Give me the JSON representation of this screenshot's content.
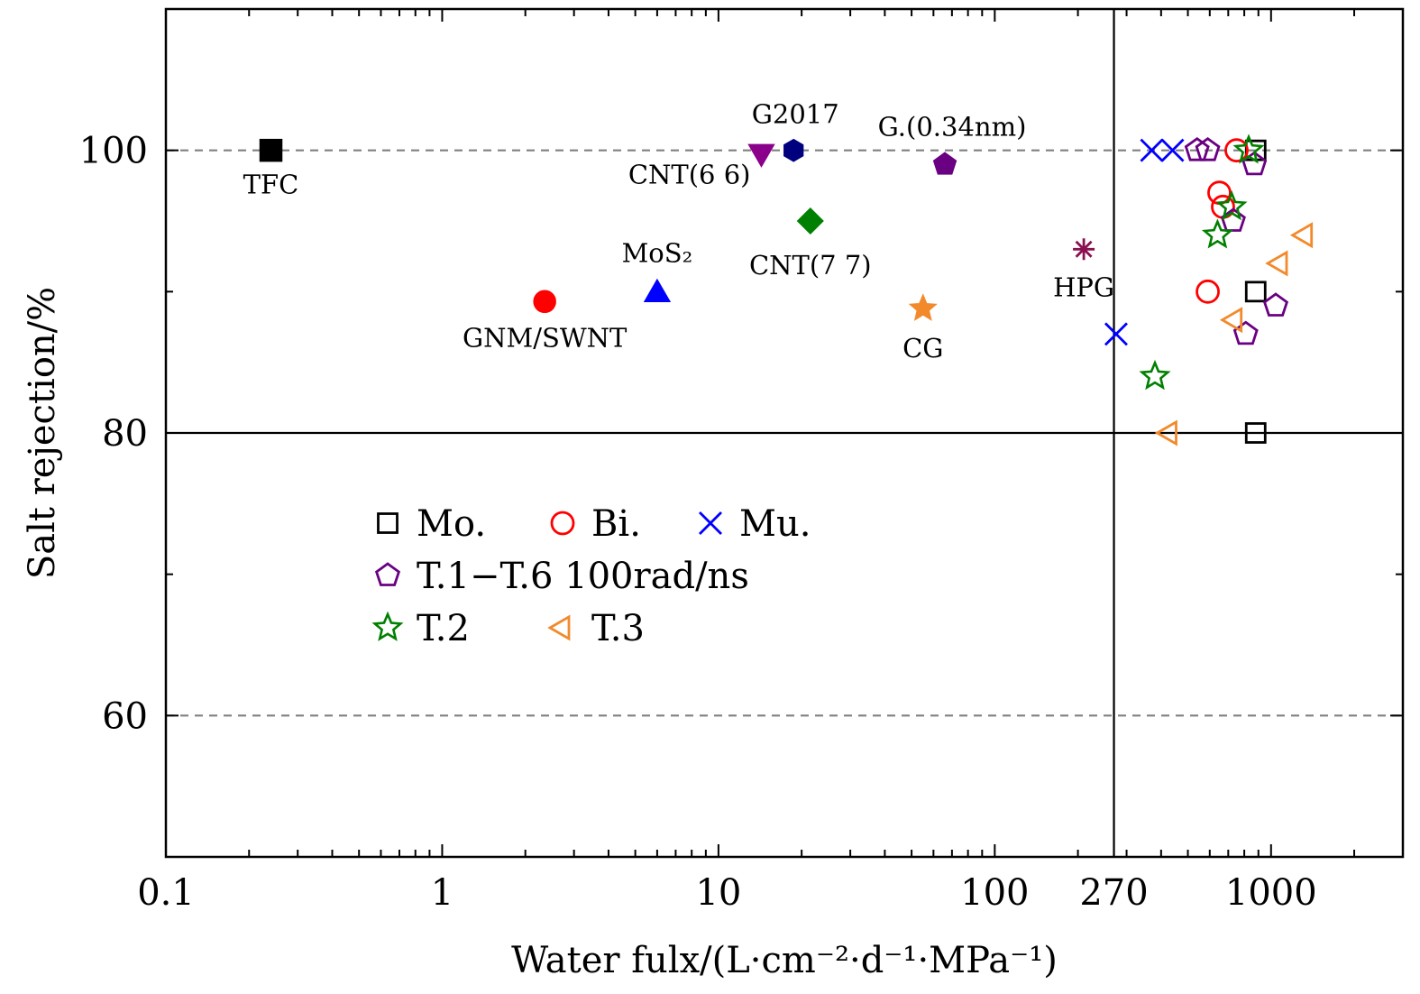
{
  "chart_data": {
    "type": "scatter",
    "xlabel": "Water fulx/(L·cm⁻²·d⁻¹·MPa⁻¹)",
    "ylabel": "Salt rejection/%",
    "xscale": "log",
    "xlim": [
      0.1,
      3000
    ],
    "ylim": [
      50,
      110
    ],
    "x_ticks": [
      {
        "value": 0.1,
        "label": "0.1"
      },
      {
        "value": 1,
        "label": "1"
      },
      {
        "value": 10,
        "label": "10"
      },
      {
        "value": 100,
        "label": "100"
      },
      {
        "value": 270,
        "label": "270"
      },
      {
        "value": 1000,
        "label": "1000"
      }
    ],
    "y_ticks": [
      {
        "value": 60,
        "label": "60"
      },
      {
        "value": 80,
        "label": "80"
      },
      {
        "value": 100,
        "label": "100"
      }
    ],
    "reference_lines": {
      "dashed_y": [
        100,
        60
      ],
      "solid_y": [
        80
      ],
      "solid_x": [
        270
      ]
    },
    "literature_points": [
      {
        "label": "TFC",
        "x": 0.24,
        "y": 100,
        "marker": "square",
        "color": "#000000"
      },
      {
        "label": "GNM/SWNT",
        "x": 2.35,
        "y": 89.3,
        "marker": "circle",
        "color": "#ff0000"
      },
      {
        "label": "MoS₂",
        "x": 6.0,
        "y": 90.0,
        "marker": "triangle-up",
        "color": "#0000ff"
      },
      {
        "label": "CNT(6 6)",
        "x": 14.3,
        "y": 99.7,
        "marker": "triangle-down",
        "color": "#8b008b"
      },
      {
        "label": "G2017",
        "x": 18.7,
        "y": 100,
        "marker": "hexagon",
        "color": "#00007f"
      },
      {
        "label": "CNT(7 7)",
        "x": 21.5,
        "y": 95.0,
        "marker": "diamond",
        "color": "#008000"
      },
      {
        "label": "G.(0.34nm)",
        "x": 66.0,
        "y": 99.0,
        "marker": "pentagon",
        "color": "#6a0082"
      },
      {
        "label": "CG",
        "x": 55.0,
        "y": 88.8,
        "marker": "star",
        "color": "#f28a2c"
      },
      {
        "label": "HPG",
        "x": 210.0,
        "y": 93.0,
        "marker": "asterisk",
        "color": "#8b1050"
      }
    ],
    "series": [
      {
        "name": "Mo.",
        "marker": "square",
        "color": "#000000",
        "x": [
          880,
          880,
          880
        ],
        "y": [
          100,
          90,
          80
        ]
      },
      {
        "name": "Bi.",
        "marker": "circle",
        "color": "#ff0000",
        "x": [
          750,
          650,
          670,
          590
        ],
        "y": [
          100,
          97,
          96,
          90
        ]
      },
      {
        "name": "Mu.",
        "marker": "x",
        "color": "#0000ff",
        "x": [
          370,
          440,
          275
        ],
        "y": [
          100,
          100,
          87
        ]
      },
      {
        "name": "T.1−T.6 100rad/ns",
        "marker": "pentagon",
        "color": "#6a0082",
        "x": [
          540,
          590,
          870,
          730,
          1040,
          810
        ],
        "y": [
          100,
          100,
          99,
          95,
          89,
          87
        ]
      },
      {
        "name": "T.2",
        "marker": "star",
        "color": "#008000",
        "x": [
          830,
          720,
          640,
          380
        ],
        "y": [
          100,
          96,
          94,
          84
        ]
      },
      {
        "name": "T.3",
        "marker": "triangle-left",
        "color": "#f28a2c",
        "x": [
          1330,
          1080,
          740,
          430
        ],
        "y": [
          94,
          92,
          88,
          80
        ]
      }
    ],
    "legend_rows": [
      [
        "Mo.",
        "Bi.",
        "Mu."
      ],
      [
        "T.1−T.6 100rad/ns"
      ],
      [
        "T.2",
        "T.3"
      ]
    ],
    "legend_position": "left-lower-middle",
    "grid": false
  }
}
